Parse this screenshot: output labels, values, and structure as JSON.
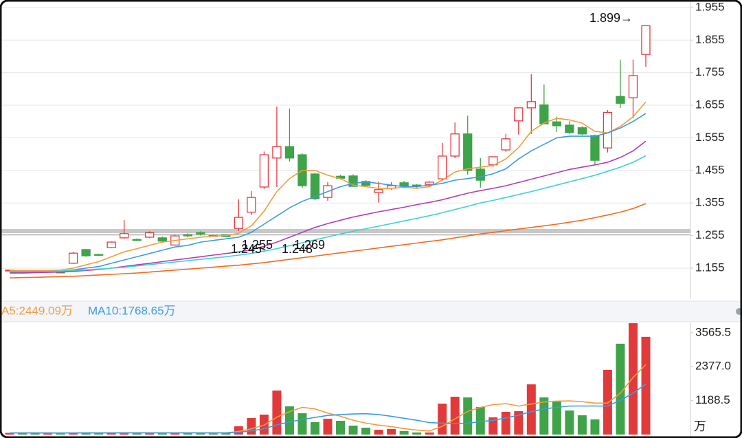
{
  "chart_data": [
    {
      "type": "candlestick",
      "open": [
        1.148,
        1.147,
        1.144,
        1.145,
        1.143,
        1.17,
        1.212,
        1.197,
        1.218,
        1.248,
        1.243,
        1.25,
        1.248,
        1.226,
        1.257,
        1.264,
        1.255,
        1.257,
        1.277,
        1.327,
        1.404,
        1.493,
        1.528,
        1.503,
        1.444,
        1.372,
        1.437,
        1.438,
        1.421,
        1.387,
        1.4,
        1.417,
        1.41,
        1.412,
        1.429,
        1.499,
        1.567,
        1.459,
        1.472,
        1.518,
        1.607,
        1.647,
        1.656,
        1.604,
        1.594,
        1.586,
        1.562,
        1.524,
        1.682,
        1.678,
        1.811
      ],
      "high": [
        1.15,
        1.149,
        1.147,
        1.147,
        1.146,
        1.205,
        1.214,
        1.199,
        1.237,
        1.303,
        1.246,
        1.268,
        1.252,
        1.257,
        1.262,
        1.268,
        1.257,
        1.259,
        1.366,
        1.392,
        1.513,
        1.651,
        1.645,
        1.507,
        1.448,
        1.419,
        1.442,
        1.443,
        1.425,
        1.421,
        1.419,
        1.423,
        1.413,
        1.422,
        1.539,
        1.602,
        1.623,
        1.493,
        1.497,
        1.567,
        1.647,
        1.75,
        1.719,
        1.62,
        1.606,
        1.59,
        1.565,
        1.64,
        1.795,
        1.795,
        1.899
      ],
      "low": [
        1.145,
        1.143,
        1.14,
        1.143,
        1.14,
        1.168,
        1.19,
        1.193,
        1.216,
        1.245,
        1.238,
        1.247,
        1.235,
        1.224,
        1.25,
        1.255,
        1.252,
        1.25,
        1.269,
        1.318,
        1.398,
        1.404,
        1.482,
        1.402,
        1.364,
        1.362,
        1.427,
        1.405,
        1.407,
        1.356,
        1.396,
        1.4,
        1.402,
        1.407,
        1.423,
        1.493,
        1.442,
        1.402,
        1.466,
        1.512,
        1.565,
        1.567,
        1.596,
        1.573,
        1.567,
        1.563,
        1.472,
        1.51,
        1.647,
        1.615,
        1.773
      ],
      "close": [
        1.149,
        1.146,
        1.142,
        1.146,
        1.141,
        1.201,
        1.193,
        1.195,
        1.235,
        1.261,
        1.24,
        1.264,
        1.238,
        1.254,
        1.254,
        1.259,
        1.254,
        1.252,
        1.311,
        1.372,
        1.503,
        1.528,
        1.493,
        1.408,
        1.368,
        1.408,
        1.431,
        1.406,
        1.409,
        1.396,
        1.408,
        1.406,
        1.408,
        1.419,
        1.499,
        1.567,
        1.455,
        1.425,
        1.497,
        1.552,
        1.647,
        1.666,
        1.598,
        1.592,
        1.571,
        1.567,
        1.486,
        1.633,
        1.661,
        1.746,
        1.899
      ],
      "up_color": "#e8383d",
      "down_color": "#3fa34a",
      "lines": [
        {
          "color": "#f39c3b",
          "values": [
            1.148,
            1.148,
            1.148,
            1.148,
            1.149,
            1.155,
            1.165,
            1.175,
            1.19,
            1.205,
            1.215,
            1.225,
            1.235,
            1.24,
            1.245,
            1.25,
            1.253,
            1.255,
            1.262,
            1.285,
            1.33,
            1.39,
            1.43,
            1.455,
            1.455,
            1.44,
            1.43,
            1.41,
            1.405,
            1.4,
            1.4,
            1.403,
            1.4,
            1.405,
            1.425,
            1.45,
            1.46,
            1.465,
            1.47,
            1.49,
            1.525,
            1.575,
            1.6,
            1.615,
            1.61,
            1.6,
            1.575,
            1.57,
            1.59,
            1.62,
            1.665
          ]
        },
        {
          "color": "#3c9be8",
          "values": [
            1.142,
            1.142,
            1.142,
            1.143,
            1.145,
            1.15,
            1.155,
            1.16,
            1.17,
            1.18,
            1.19,
            1.2,
            1.21,
            1.22,
            1.225,
            1.235,
            1.24,
            1.245,
            1.25,
            1.265,
            1.29,
            1.315,
            1.34,
            1.36,
            1.375,
            1.39,
            1.405,
            1.415,
            1.42,
            1.415,
            1.41,
            1.405,
            1.405,
            1.41,
            1.415,
            1.425,
            1.43,
            1.435,
            1.445,
            1.46,
            1.49,
            1.515,
            1.535,
            1.555,
            1.56,
            1.56,
            1.56,
            1.57,
            1.585,
            1.605,
            1.63
          ]
        },
        {
          "color": "#b53cb0",
          "values": [
            1.14,
            1.14,
            1.141,
            1.142,
            1.143,
            1.145,
            1.148,
            1.151,
            1.155,
            1.16,
            1.165,
            1.17,
            1.175,
            1.18,
            1.185,
            1.19,
            1.195,
            1.2,
            1.205,
            1.212,
            1.222,
            1.235,
            1.25,
            1.265,
            1.28,
            1.292,
            1.302,
            1.312,
            1.32,
            1.328,
            1.335,
            1.342,
            1.35,
            1.357,
            1.365,
            1.375,
            1.385,
            1.393,
            1.4,
            1.408,
            1.418,
            1.428,
            1.438,
            1.448,
            1.458,
            1.465,
            1.472,
            1.48,
            1.495,
            1.515,
            1.545
          ]
        },
        {
          "color": "#3cd0d8",
          "values": [
            1.145,
            1.145,
            1.145,
            1.145,
            1.146,
            1.148,
            1.15,
            1.152,
            1.155,
            1.158,
            1.162,
            1.166,
            1.17,
            1.174,
            1.178,
            1.182,
            1.186,
            1.19,
            1.195,
            1.2,
            1.207,
            1.215,
            1.224,
            1.233,
            1.242,
            1.251,
            1.26,
            1.268,
            1.276,
            1.284,
            1.292,
            1.3,
            1.308,
            1.316,
            1.325,
            1.335,
            1.345,
            1.355,
            1.363,
            1.372,
            1.381,
            1.39,
            1.4,
            1.41,
            1.42,
            1.43,
            1.44,
            1.452,
            1.465,
            1.48,
            1.5
          ]
        },
        {
          "color": "#f26b1d",
          "values": [
            1.125,
            1.126,
            1.127,
            1.128,
            1.129,
            1.13,
            1.132,
            1.134,
            1.136,
            1.138,
            1.14,
            1.143,
            1.146,
            1.149,
            1.152,
            1.155,
            1.158,
            1.161,
            1.164,
            1.168,
            1.172,
            1.177,
            1.182,
            1.187,
            1.192,
            1.197,
            1.202,
            1.207,
            1.212,
            1.217,
            1.222,
            1.227,
            1.232,
            1.237,
            1.242,
            1.248,
            1.254,
            1.26,
            1.265,
            1.27,
            1.275,
            1.28,
            1.285,
            1.29,
            1.296,
            1.302,
            1.31,
            1.318,
            1.327,
            1.338,
            1.353
          ]
        }
      ],
      "ylim": [
        1.06,
        1.978
      ],
      "yticks": [
        1.155,
        1.255,
        1.355,
        1.455,
        1.555,
        1.655,
        1.755,
        1.855,
        1.955
      ],
      "grid": true,
      "annotations": [
        "1.899→",
        "1.255",
        "1.269",
        "1.245-",
        "1.248"
      ]
    },
    {
      "type": "bar",
      "legend": [
        {
          "text": "A5:2449.09万",
          "color": "#f39c3b"
        },
        {
          "text": "MA10:1768.65万",
          "color": "#3c9be8"
        }
      ],
      "values": [
        60,
        55,
        50,
        45,
        48,
        70,
        65,
        50,
        62,
        75,
        55,
        60,
        58,
        66,
        52,
        57,
        50,
        55,
        289,
        578,
        699,
        1542,
        988,
        747,
        434,
        554,
        482,
        313,
        241,
        169,
        193,
        120,
        72,
        72,
        1084,
        1325,
        1301,
        964,
        602,
        795,
        819,
        1759,
        1301,
        1181,
        843,
        675,
        530,
        2265,
        3181,
        3900,
        3422
      ],
      "up_color": "#e23a3a",
      "down_color": "#3fa34a",
      "lines": [
        {
          "color": "#f39c3b",
          "values": [
            60,
            60,
            58,
            55,
            52,
            55,
            58,
            60,
            60,
            62,
            63,
            60,
            60,
            60,
            60,
            60,
            58,
            58,
            110,
            200,
            330,
            610,
            800,
            950,
            900,
            750,
            640,
            500,
            400,
            330,
            280,
            210,
            160,
            125,
            290,
            550,
            810,
            950,
            1050,
            1080,
            1000,
            1070,
            1140,
            1170,
            1180,
            1150,
            1100,
            1100,
            1450,
            2000,
            2449.09
          ]
        },
        {
          "color": "#3c9be8",
          "values": [
            55,
            55,
            55,
            55,
            55,
            56,
            57,
            58,
            58,
            60,
            60,
            60,
            60,
            60,
            60,
            60,
            60,
            60,
            80,
            130,
            200,
            340,
            440,
            530,
            600,
            670,
            700,
            720,
            730,
            700,
            640,
            570,
            500,
            420,
            400,
            380,
            400,
            450,
            500,
            580,
            680,
            800,
            900,
            950,
            1000,
            1000,
            1000,
            1000,
            1200,
            1450,
            1768.65
          ]
        }
      ],
      "ylim": [
        0,
        3900
      ],
      "yticks": [
        1188.5,
        {
          "value": 2377,
          "label": "2377.0"
        },
        3565.5
      ],
      "unit": "万"
    }
  ]
}
